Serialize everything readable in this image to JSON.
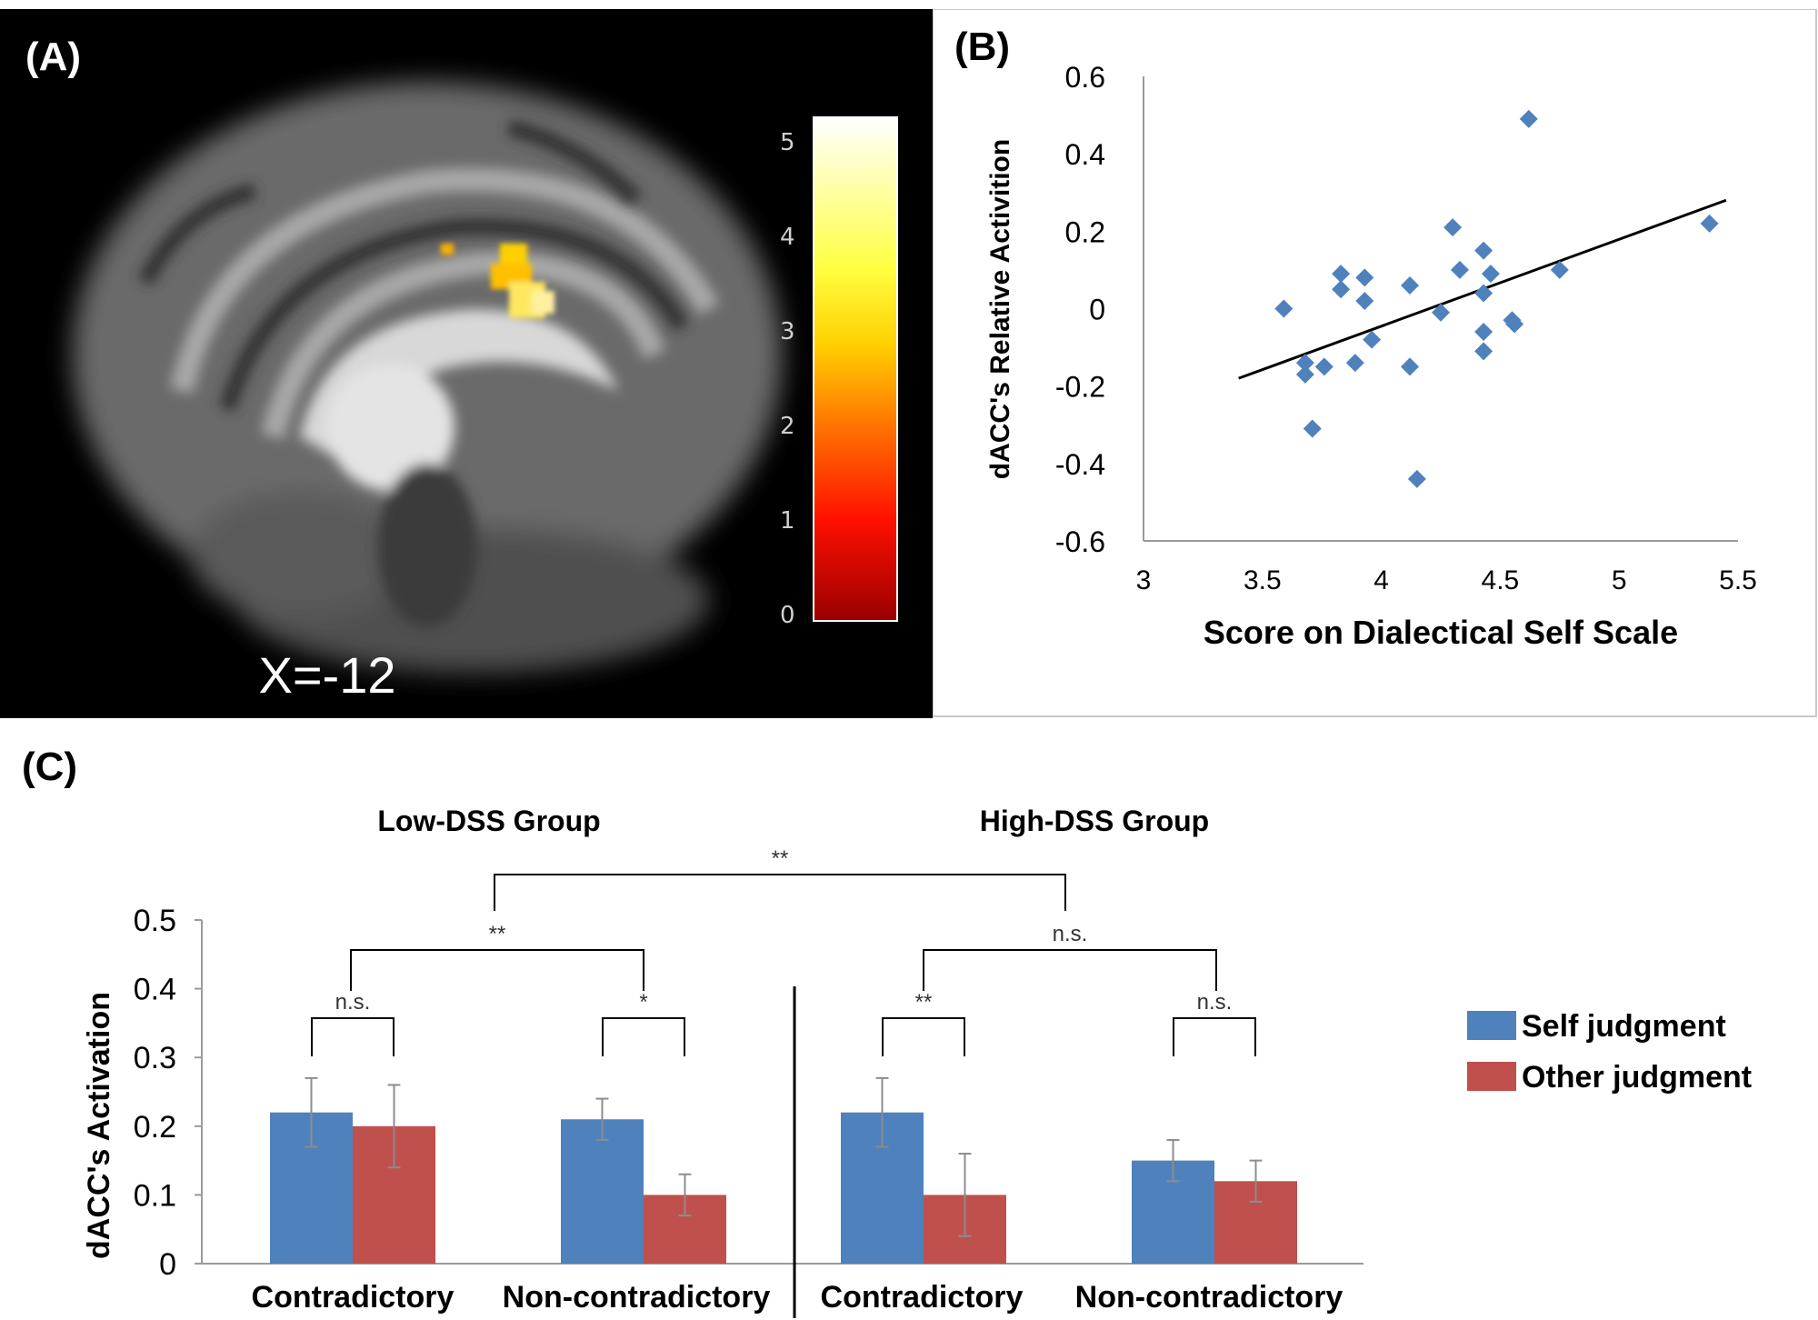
{
  "panels": {
    "a_label": "(A)",
    "b_label": "(B)",
    "c_label": "(C)",
    "brain_caption": "X=-12",
    "colorbar_ticks": [
      "5",
      "4",
      "3",
      "2",
      "1",
      "0"
    ]
  },
  "chart_data": [
    {
      "type": "scatter",
      "xlabel": "Score on Dialectical Self Scale",
      "ylabel": "dACC's Relative Activition",
      "xlim": [
        3,
        5.5
      ],
      "ylim": [
        -0.6,
        0.6
      ],
      "xticks": [
        "3",
        "3.5",
        "4",
        "4.5",
        "5",
        "5.5"
      ],
      "yticks": [
        "0.6",
        "0.4",
        "0.2",
        "0",
        "-0.2",
        "-0.4",
        "-0.6"
      ],
      "marker_color": "#4f81bd",
      "points": [
        [
          3.59,
          0.0
        ],
        [
          3.68,
          -0.14
        ],
        [
          3.68,
          -0.17
        ],
        [
          3.71,
          -0.31
        ],
        [
          3.76,
          -0.15
        ],
        [
          3.83,
          0.09
        ],
        [
          3.83,
          0.05
        ],
        [
          3.89,
          -0.14
        ],
        [
          3.93,
          0.08
        ],
        [
          3.93,
          0.02
        ],
        [
          3.96,
          -0.08
        ],
        [
          4.12,
          0.06
        ],
        [
          4.12,
          -0.15
        ],
        [
          4.15,
          -0.44
        ],
        [
          4.25,
          -0.01
        ],
        [
          4.3,
          0.21
        ],
        [
          4.33,
          0.1
        ],
        [
          4.43,
          0.15
        ],
        [
          4.43,
          0.04
        ],
        [
          4.43,
          -0.06
        ],
        [
          4.43,
          -0.11
        ],
        [
          4.46,
          0.09
        ],
        [
          4.55,
          -0.03
        ],
        [
          4.56,
          -0.04
        ],
        [
          4.62,
          0.49
        ],
        [
          4.75,
          0.1
        ],
        [
          5.38,
          0.22
        ]
      ],
      "trendline": [
        [
          3.4,
          -0.18
        ],
        [
          5.45,
          0.28
        ]
      ]
    },
    {
      "type": "bar",
      "ylabel": "dACC's Activation",
      "ylim": [
        0,
        0.5
      ],
      "yticks": [
        "0.5",
        "0.4",
        "0.3",
        "0.2",
        "0.1",
        "0"
      ],
      "groups": [
        "Low-DSS Group",
        "High-DSS Group"
      ],
      "categories": [
        "Contradictory",
        "Non-contradictory",
        "Contradictory",
        "Non-contradictory"
      ],
      "series": [
        {
          "name": "Self judgment",
          "color": "#4f81bd",
          "values": [
            0.22,
            0.21,
            0.22,
            0.15
          ],
          "errors": [
            0.05,
            0.03,
            0.05,
            0.03
          ]
        },
        {
          "name": "Other judgment",
          "color": "#c0504d",
          "values": [
            0.2,
            0.1,
            0.1,
            0.12
          ],
          "errors": [
            0.06,
            0.03,
            0.06,
            0.03
          ]
        }
      ],
      "significance": {
        "pairs": [
          "n.s.",
          "*",
          "**",
          "n.s."
        ],
        "within_group": [
          "**",
          "n.s."
        ],
        "between_group": "**"
      }
    }
  ]
}
